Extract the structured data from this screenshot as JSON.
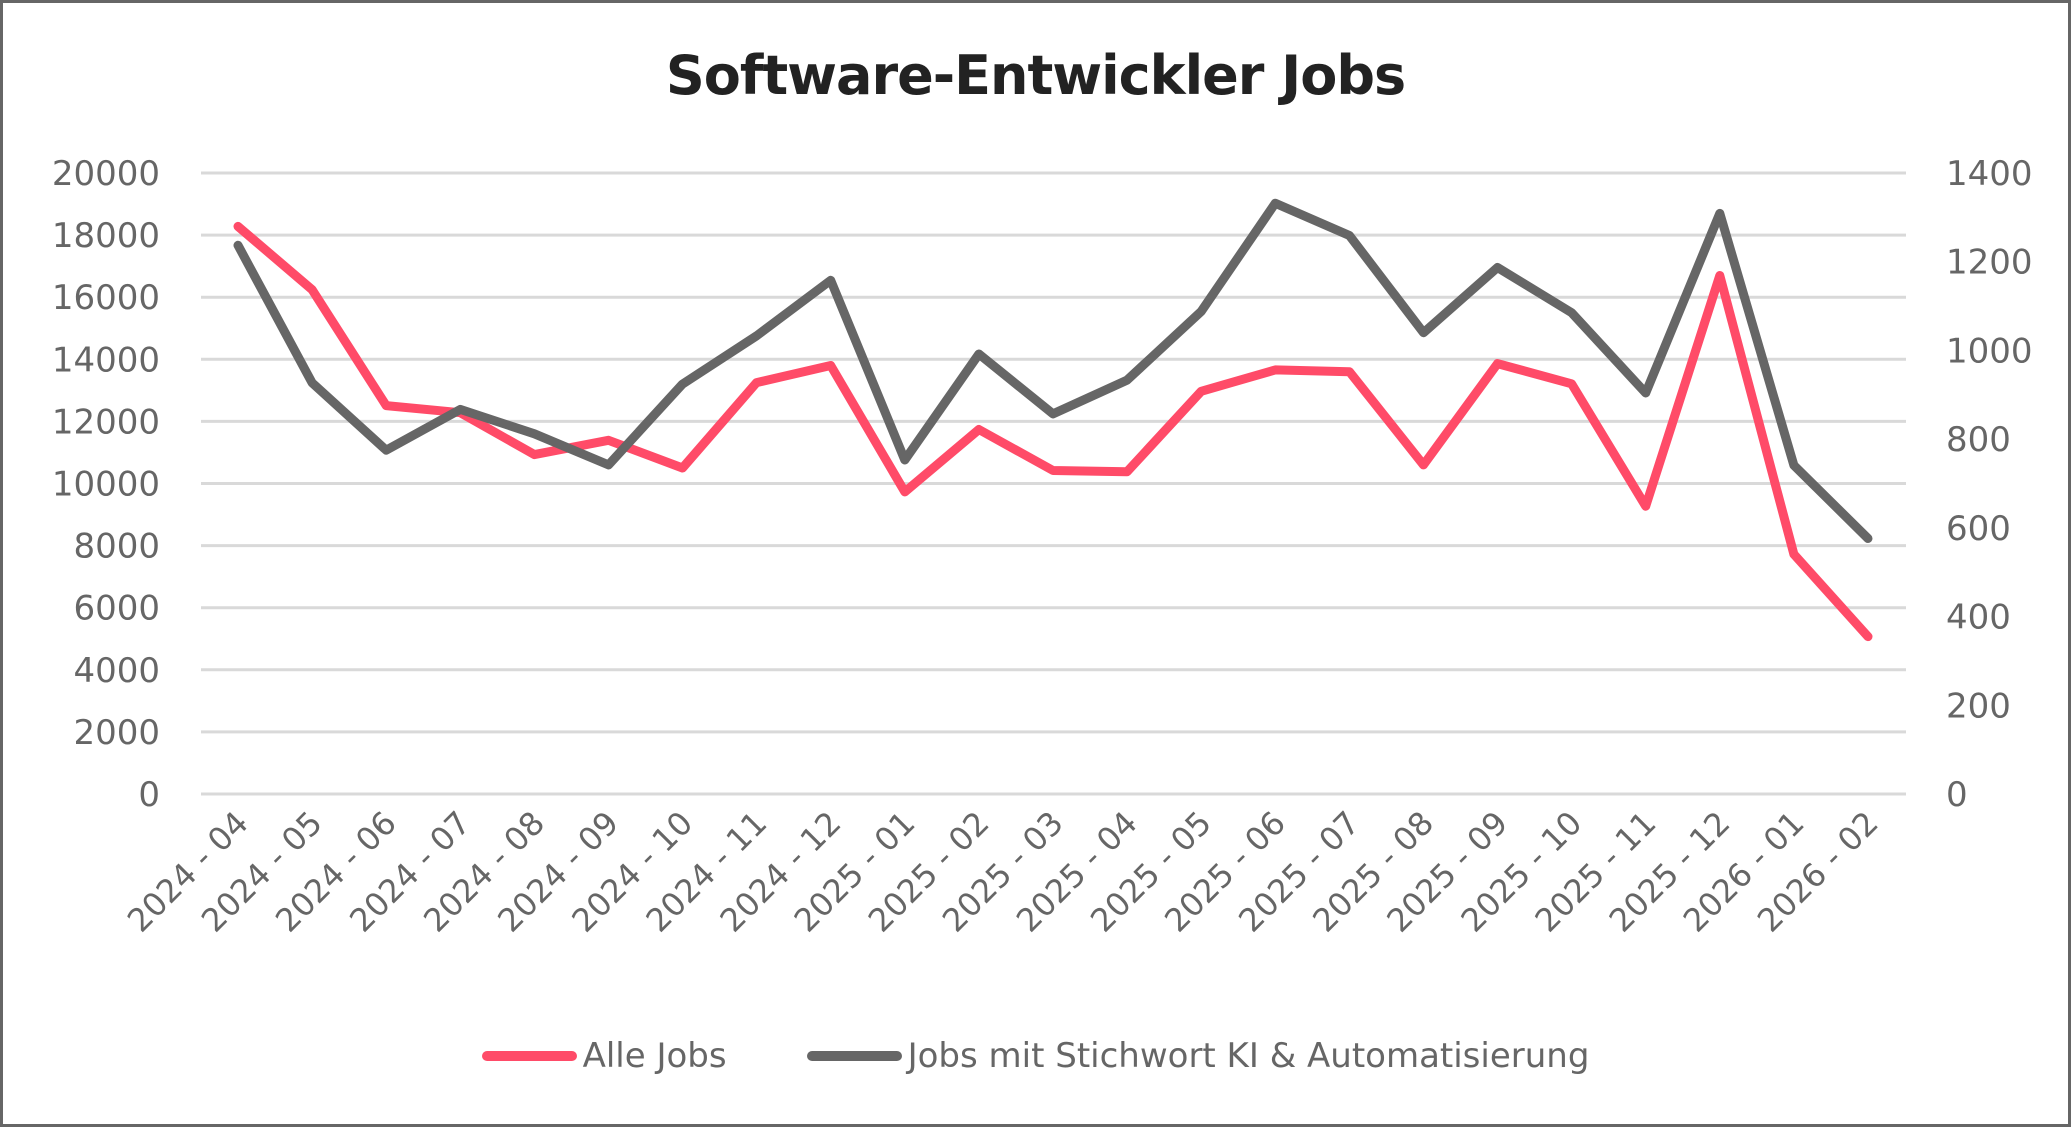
{
  "chart_data": {
    "type": "line",
    "title": "Software-Entwickler Jobs",
    "xlabel": "",
    "ylabel": "",
    "ylabel_right": "",
    "categories": [
      "2024 - 04",
      "2024 - 05",
      "2024 - 06",
      "2024 - 07",
      "2024 - 08",
      "2024 - 09",
      "2024 - 10",
      "2024 - 11",
      "2024 - 12",
      "2025 - 01",
      "2025 - 02",
      "2025 - 03",
      "2025 - 04",
      "2025 - 05",
      "2025 - 06",
      "2025 - 07",
      "2025 - 08",
      "2025 - 09",
      "2025 - 10",
      "2025 - 11",
      "2025 - 12",
      "2026 - 01",
      "2026 - 02"
    ],
    "ylim": [
      0,
      20000
    ],
    "yticks": [
      0,
      2000,
      4000,
      6000,
      8000,
      10000,
      12000,
      14000,
      16000,
      18000,
      20000
    ],
    "ylim_right": [
      0,
      1400
    ],
    "yticks_right": [
      0,
      200,
      400,
      600,
      800,
      1000,
      1200,
      1400
    ],
    "grid": true,
    "legend_position": "bottom",
    "series": [
      {
        "name": "Alle Jobs",
        "axis": "left",
        "color": "#FF4B68",
        "values": [
          18280,
          16240,
          12510,
          12280,
          10930,
          11390,
          10500,
          13250,
          13800,
          9730,
          11740,
          10420,
          10380,
          12970,
          13660,
          13600,
          10600,
          13860,
          13210,
          9270,
          16700,
          7720,
          5070
        ]
      },
      {
        "name": "Jobs mit Stichwort KI & Automatisierung",
        "axis": "right",
        "color": "#666666",
        "values": [
          1237,
          927,
          775,
          867,
          812,
          742,
          924,
          1033,
          1158,
          753,
          992,
          857,
          933,
          1088,
          1332,
          1259,
          1040,
          1187,
          1085,
          904,
          1309,
          741,
          576
        ]
      }
    ]
  }
}
